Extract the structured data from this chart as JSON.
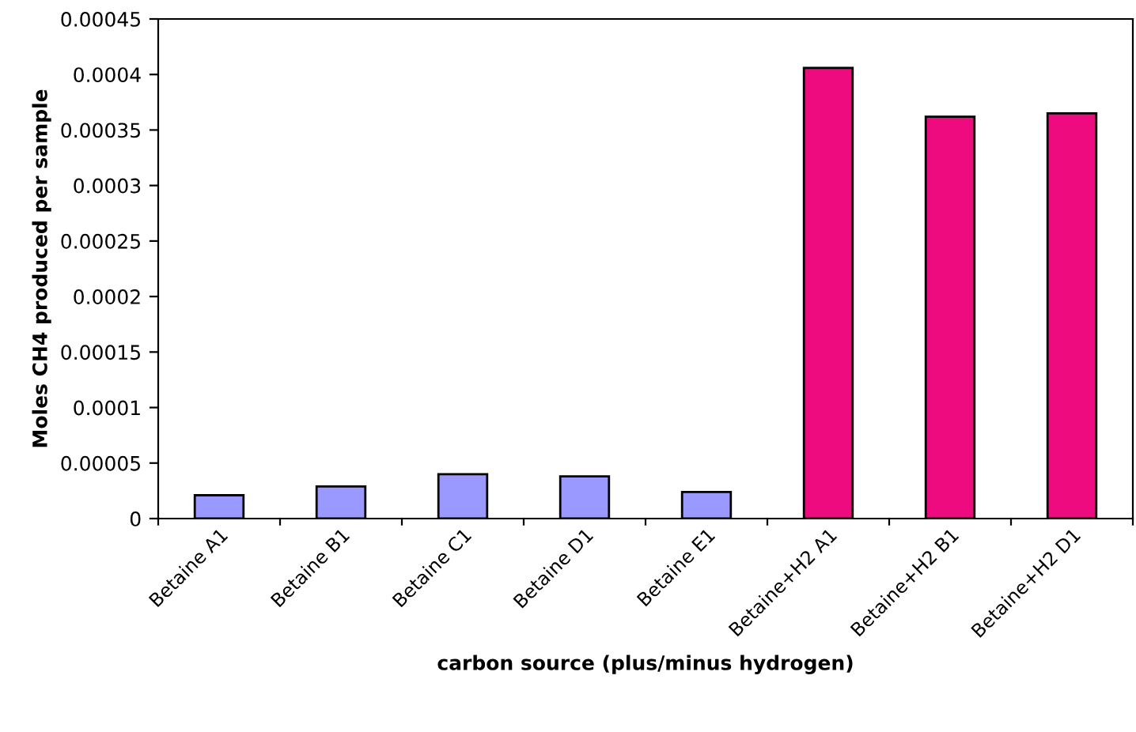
{
  "chart_data": {
    "type": "bar",
    "categories": [
      "Betaine A1",
      "Betaine B1",
      "Betaine C1",
      "Betaine D1",
      "Betaine E1",
      "Betaine+H2 A1",
      "Betaine+H2 B1",
      "Betaine+H2 D1"
    ],
    "values": [
      2.1e-05,
      2.9e-05,
      4e-05,
      3.8e-05,
      2.4e-05,
      0.000406,
      0.000362,
      0.000365
    ],
    "colors": [
      "#9999ff",
      "#9999ff",
      "#9999ff",
      "#9999ff",
      "#9999ff",
      "#ee0a7f",
      "#ee0a7f",
      "#ee0a7f"
    ],
    "xlabel": "carbon source (plus/minus hydrogen)",
    "ylabel": "Moles CH4 produced per sample",
    "ylim": [
      0,
      0.00045
    ],
    "yticks": [
      {
        "value": 0,
        "label": "0"
      },
      {
        "value": 5e-05,
        "label": "0.00005"
      },
      {
        "value": 0.0001,
        "label": "0.0001"
      },
      {
        "value": 0.00015,
        "label": "0.00015"
      },
      {
        "value": 0.0002,
        "label": "0.0002"
      },
      {
        "value": 0.00025,
        "label": "0.00025"
      },
      {
        "value": 0.0003,
        "label": "0.0003"
      },
      {
        "value": 0.00035,
        "label": "0.00035"
      },
      {
        "value": 0.0004,
        "label": "0.0004"
      },
      {
        "value": 0.00045,
        "label": "0.00045"
      }
    ],
    "grid": false,
    "legend": false
  }
}
